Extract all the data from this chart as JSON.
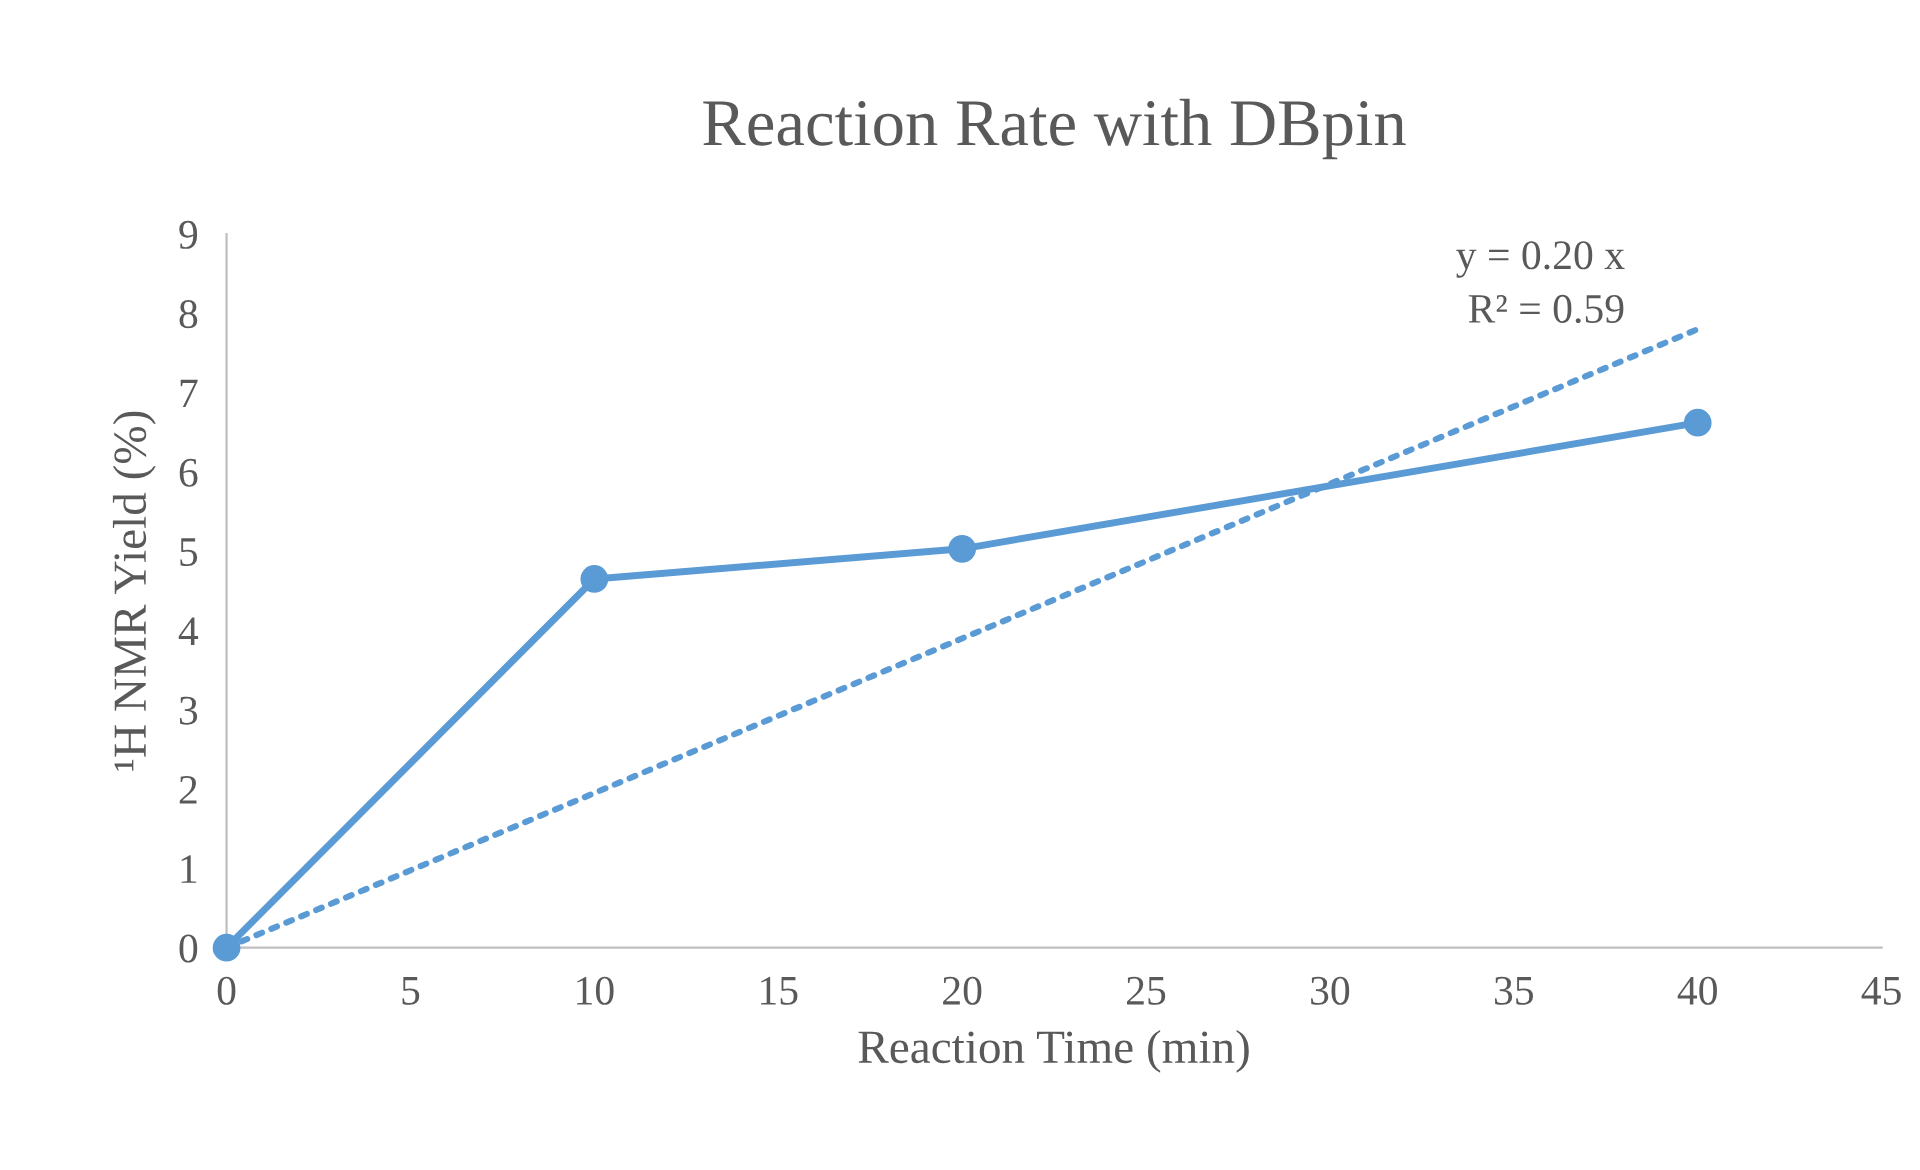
{
  "chart_data": {
    "type": "line",
    "title": "Reaction Rate with DBpin",
    "xlabel": "Reaction Time (min)",
    "ylabel": "¹H NMR Yield (%)",
    "x": [
      0,
      10,
      20,
      40
    ],
    "series": [
      {
        "color": "#5b9bd5",
        "values": [
          0,
          4.65,
          5.03,
          6.62
        ],
        "marker": "circle",
        "line_style": "solid"
      },
      {
        "color": "#5b9bd5",
        "x": [
          0,
          40
        ],
        "values": [
          0,
          7.8
        ],
        "marker": "none",
        "line_style": "dotted"
      }
    ],
    "annotations": [
      "y = 0.20 x",
      "R² = 0.59"
    ],
    "xlim": [
      0,
      45
    ],
    "xticks": [
      0,
      5,
      10,
      15,
      20,
      25,
      30,
      35,
      40,
      45
    ],
    "ylim": [
      0,
      9
    ],
    "yticks": [
      0,
      1,
      2,
      3,
      4,
      5,
      6,
      7,
      8,
      9
    ],
    "grid": false,
    "legend": false
  }
}
